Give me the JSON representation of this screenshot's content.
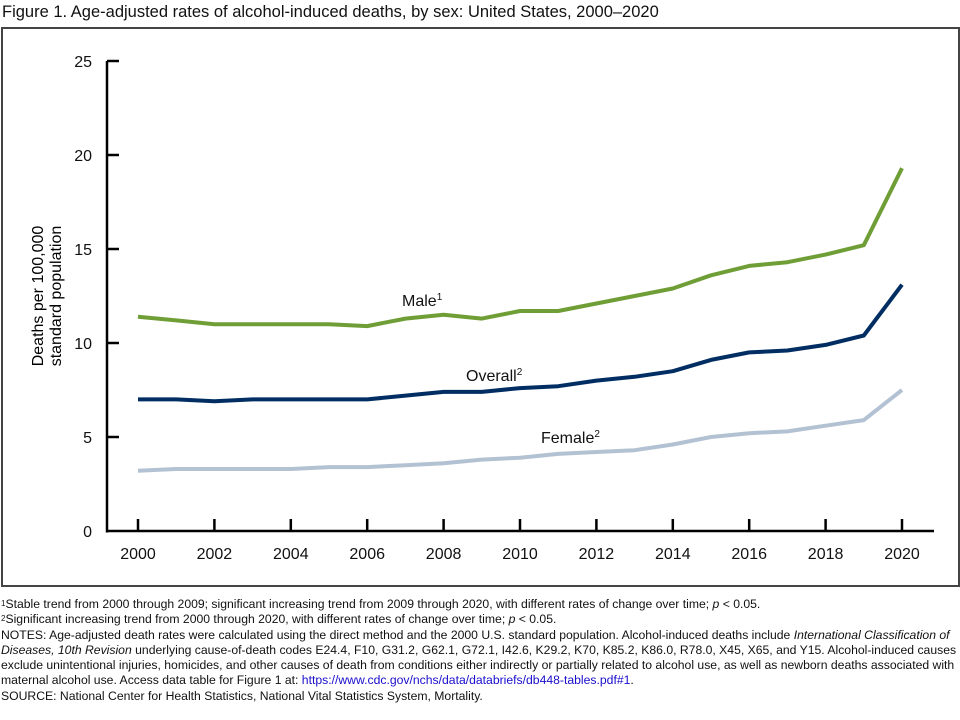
{
  "figure_title": "Figure 1. Age-adjusted rates of alcohol-induced deaths, by sex: United States, 2000–2020",
  "chart_data": {
    "type": "line",
    "title": "Figure 1. Age-adjusted rates of alcohol-induced deaths, by sex: United States, 2000–2020",
    "xlabel": "",
    "ylabel": "Deaths per 100,000 standard population",
    "ylabel_lines": [
      "Deaths per 100,000",
      "standard population"
    ],
    "x": [
      2000,
      2001,
      2002,
      2003,
      2004,
      2005,
      2006,
      2007,
      2008,
      2009,
      2010,
      2011,
      2012,
      2013,
      2014,
      2015,
      2016,
      2017,
      2018,
      2019,
      2020
    ],
    "xlim": [
      2000,
      2020
    ],
    "ylim": [
      0,
      25
    ],
    "x_ticks": [
      2000,
      2002,
      2004,
      2006,
      2008,
      2010,
      2012,
      2014,
      2016,
      2018,
      2020
    ],
    "y_ticks": [
      0,
      5,
      10,
      15,
      20,
      25
    ],
    "grid": false,
    "legend": "inline labels",
    "series": [
      {
        "name": "Male",
        "label": "Male",
        "footnote_mark": "1",
        "color": "#6f9e36",
        "values": [
          11.4,
          11.2,
          11.0,
          11.0,
          11.0,
          11.0,
          10.9,
          11.3,
          11.5,
          11.3,
          11.7,
          11.7,
          12.1,
          12.5,
          12.9,
          13.6,
          14.1,
          14.3,
          14.7,
          15.2,
          19.3
        ]
      },
      {
        "name": "Overall",
        "label": "Overall",
        "footnote_mark": "2",
        "color": "#002d62",
        "values": [
          7.0,
          7.0,
          6.9,
          7.0,
          7.0,
          7.0,
          7.0,
          7.2,
          7.4,
          7.4,
          7.6,
          7.7,
          8.0,
          8.2,
          8.5,
          9.1,
          9.5,
          9.6,
          9.9,
          10.4,
          13.1
        ]
      },
      {
        "name": "Female",
        "label": "Female",
        "footnote_mark": "2",
        "color": "#b3c2d3",
        "values": [
          3.2,
          3.3,
          3.3,
          3.3,
          3.3,
          3.4,
          3.4,
          3.5,
          3.6,
          3.8,
          3.9,
          4.1,
          4.2,
          4.3,
          4.6,
          5.0,
          5.2,
          5.3,
          5.6,
          5.9,
          7.5
        ]
      }
    ]
  },
  "footnotes": {
    "fn1_mark": "1",
    "fn1_a": "Stable trend from 2000 through 2009; significant increasing trend from 2009 through 2020, with different rates of change over time; ",
    "fn1_p": "p",
    "fn1_b": " < 0.05.",
    "fn2_mark": "2",
    "fn2_a": "Significant increasing trend from 2000 through 2020, with different rates of change over time; ",
    "fn2_p": "p",
    "fn2_b": " < 0.05.",
    "notes_a": "NOTES: Age-adjusted death rates were calculated using the direct method and the 2000 U.S. standard population. Alcohol-induced deaths include ",
    "notes_italic": "International Classification of Diseases, 10th Revision",
    "notes_b": " underlying cause-of-death codes E24.4, F10, G31.2, G62.1, G72.1, I42.6, K29.2, K70, K85.2, K86.0, R78.0, X45, X65, and Y15. Alcohol-induced causes exclude unintentional injuries, homicides, and other causes of death from conditions either indirectly or partially related to alcohol use, as well as newborn deaths associated with maternal alcohol use. Access data table for Figure 1 at: ",
    "notes_link": "https://www.cdc.gov/nchs/data/databriefs/db448-tables.pdf#1",
    "notes_c": ".",
    "source": "SOURCE: National Center for Health Statistics, National Vital Statistics System, Mortality."
  }
}
